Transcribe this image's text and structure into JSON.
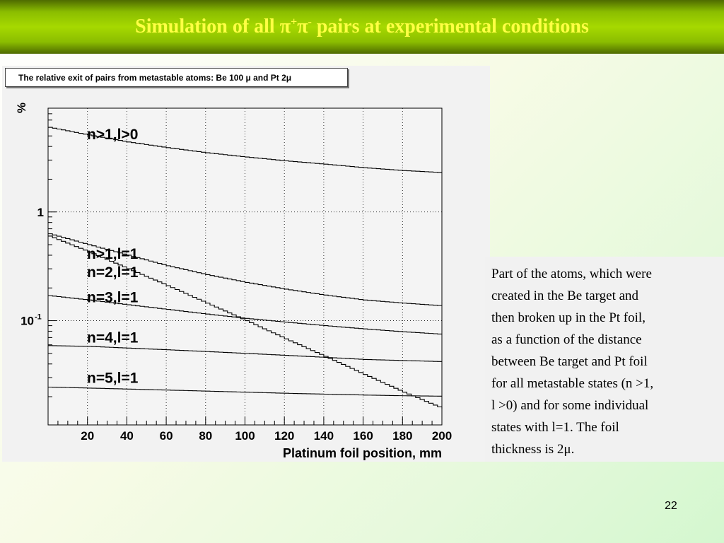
{
  "slide": {
    "title_prefix": "Simulation of all π",
    "title_sup1": "+",
    "title_mid": "π",
    "title_sup2": "-",
    "title_suffix": " pairs at experimental conditions",
    "description": "Part of the atoms, which were\ncreated in the Be target and\nthen broken up in the Pt foil,\nas a function of the distance\nbetween  Be target and Pt foil\nfor all metastable states (n >1,\nl >0) and for some individual\nstates with l=1. The foil\nthickness is 2μ.",
    "page_number": "22"
  },
  "chart_data": {
    "type": "line",
    "title": "The relative exit of pairs from metastable atoms: Be 100 μ and Pt 2μ",
    "xlabel": "Platinum foil position, mm",
    "ylabel": "%",
    "xlim": [
      0,
      200
    ],
    "ylim": [
      0.011,
      9.0
    ],
    "yscale": "log",
    "xticks": [
      "20",
      "40",
      "60",
      "80",
      "100",
      "120",
      "140",
      "160",
      "180",
      "200"
    ],
    "yticks": [
      "1",
      "10^-1"
    ],
    "grid": true,
    "x": [
      0,
      20,
      40,
      60,
      80,
      100,
      120,
      140,
      160,
      180,
      200
    ],
    "series": [
      {
        "name": "n>1,l>0",
        "values": [
          6.0,
          5.1,
          4.4,
          3.9,
          3.5,
          3.2,
          2.95,
          2.75,
          2.55,
          2.4,
          2.3
        ]
      },
      {
        "name": "n>1,l=1",
        "values": [
          0.63,
          0.5,
          0.4,
          0.32,
          0.265,
          0.225,
          0.195,
          0.172,
          0.155,
          0.145,
          0.137
        ]
      },
      {
        "name": "n=2,l=1",
        "values": [
          0.6,
          0.43,
          0.3,
          0.21,
          0.145,
          0.1,
          0.068,
          0.047,
          0.032,
          0.022,
          0.0155
        ]
      },
      {
        "name": "n=3,l=1",
        "values": [
          0.17,
          0.155,
          0.14,
          0.127,
          0.115,
          0.105,
          0.097,
          0.09,
          0.084,
          0.079,
          0.075
        ]
      },
      {
        "name": "n=4,l=1",
        "values": [
          0.059,
          0.058,
          0.056,
          0.054,
          0.052,
          0.05,
          0.048,
          0.046,
          0.044,
          0.043,
          0.042
        ]
      },
      {
        "name": "n=5,l=1",
        "values": [
          0.0245,
          0.024,
          0.0235,
          0.023,
          0.0225,
          0.022,
          0.0215,
          0.0211,
          0.0207,
          0.0204,
          0.0202
        ]
      }
    ]
  }
}
